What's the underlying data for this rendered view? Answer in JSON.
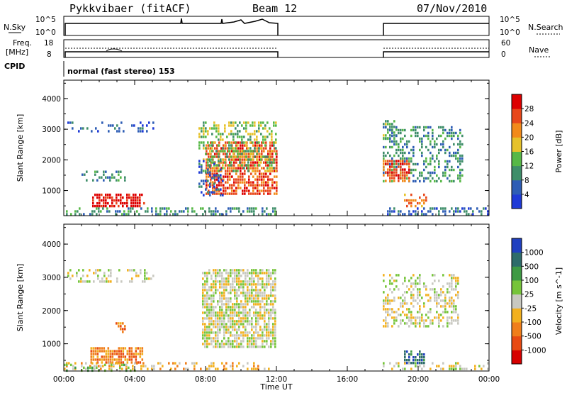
{
  "header": {
    "site": "Pykkvibaer (fitACF)",
    "beam": "Beam 12",
    "date": "07/Nov/2010"
  },
  "top_panels": {
    "nsky_label": "N.Sky",
    "nsearch_label": "N.Search",
    "freq_label_1": "Freq.",
    "freq_label_2": "[MHz]",
    "nave_label": "Nave",
    "cpid_label": "CPID",
    "nsky_ticks": [
      "10^5",
      "10^0"
    ],
    "nsearch_ticks": [
      "10^5",
      "10^0"
    ],
    "freq_ticks": [
      "18",
      "8"
    ],
    "nave_ticks": [
      "60",
      "0"
    ],
    "mode_text": "normal (fast stereo) 153"
  },
  "colors": {
    "power": [
      "#1f3ad6",
      "#2e5db5",
      "#3f8e6a",
      "#57b847",
      "#e6c22a",
      "#f28a1a",
      "#e8471a",
      "#dd0000"
    ],
    "velocity": [
      "#2040c0",
      "#2e6c6a",
      "#3f9a44",
      "#76c43a",
      "#c8c8c0",
      "#f2b01e",
      "#f07e1a",
      "#e84a12",
      "#d60000"
    ]
  },
  "chart_data": [
    {
      "type": "heatmap",
      "title": "",
      "xlabel": "Time UT",
      "ylabel": "Slant Range [km]",
      "x_ticks": [
        "00:00",
        "04:00",
        "08:00",
        "12:00",
        "16:00",
        "20:00",
        "00:00"
      ],
      "y_ticks": [
        "1000",
        "2000",
        "3000",
        "4000"
      ],
      "xlim_hours": [
        0,
        24
      ],
      "ylim_km": [
        180,
        4600
      ],
      "colorbar_label": "Power [dB]",
      "colorbar_ticks": [
        "4",
        "8",
        "12",
        "16",
        "20",
        "24",
        "28"
      ],
      "data_gaps_hours": [
        [
          12,
          18
        ]
      ],
      "regions": [
        {
          "t0": 0.2,
          "t1": 5.2,
          "r0": 2900,
          "r1": 3250,
          "level": 1,
          "density": 0.25
        },
        {
          "t0": 1.0,
          "t1": 3.5,
          "r0": 1350,
          "r1": 1650,
          "level": 2,
          "density": 0.35
        },
        {
          "t0": 1.6,
          "t1": 4.6,
          "r0": 500,
          "r1": 900,
          "level": 7,
          "density": 0.7
        },
        {
          "t0": 0.0,
          "t1": 12.0,
          "r0": 200,
          "r1": 450,
          "level": 2,
          "density": 0.45
        },
        {
          "t0": 8.0,
          "t1": 12.0,
          "r0": 900,
          "r1": 2600,
          "level": 6,
          "density": 0.7
        },
        {
          "t0": 7.6,
          "t1": 12.0,
          "r0": 1600,
          "r1": 3250,
          "level": 3,
          "density": 0.4
        },
        {
          "t0": 7.6,
          "t1": 9.0,
          "r0": 800,
          "r1": 2000,
          "level": 1,
          "density": 0.3
        },
        {
          "t0": 18.0,
          "t1": 18.8,
          "r0": 2700,
          "r1": 3300,
          "level": 3,
          "density": 0.55
        },
        {
          "t0": 18.0,
          "t1": 22.5,
          "r0": 1300,
          "r1": 3100,
          "level": 2,
          "density": 0.4
        },
        {
          "t0": 18.0,
          "t1": 19.5,
          "r0": 1300,
          "r1": 2000,
          "level": 6,
          "density": 0.7
        },
        {
          "t0": 19.2,
          "t1": 20.5,
          "r0": 450,
          "r1": 900,
          "level": 5,
          "density": 0.5
        },
        {
          "t0": 18.0,
          "t1": 24.0,
          "r0": 200,
          "r1": 450,
          "level": 1,
          "density": 0.4
        }
      ]
    },
    {
      "type": "heatmap",
      "title": "",
      "xlabel": "Time UT",
      "ylabel": "Slant Range [km]",
      "x_ticks": [
        "00:00",
        "04:00",
        "08:00",
        "12:00",
        "16:00",
        "20:00",
        "00:00"
      ],
      "y_ticks": [
        "1000",
        "2000",
        "3000",
        "4000"
      ],
      "xlim_hours": [
        0,
        24
      ],
      "ylim_km": [
        180,
        4600
      ],
      "colorbar_label": "Velocity [m s^-1]",
      "colorbar_ticks": [
        "1000",
        "500",
        "100",
        "25",
        "-25",
        "-100",
        "-500",
        "-1000"
      ],
      "data_gaps_hours": [
        [
          12,
          18
        ]
      ],
      "regions": [
        {
          "t0": 0.2,
          "t1": 5.2,
          "r0": 2900,
          "r1": 3250,
          "level": 4,
          "density": 0.3
        },
        {
          "t0": 1.5,
          "t1": 4.5,
          "r0": 400,
          "r1": 900,
          "level": 6,
          "density": 0.75
        },
        {
          "t0": 2.8,
          "t1": 3.5,
          "r0": 1350,
          "r1": 1650,
          "level": 6,
          "density": 0.5
        },
        {
          "t0": 0.0,
          "t1": 12.0,
          "r0": 200,
          "r1": 450,
          "level": 5,
          "density": 0.35
        },
        {
          "t0": 0.0,
          "t1": 4.0,
          "r0": 200,
          "r1": 400,
          "level": 3,
          "density": 0.2
        },
        {
          "t0": 7.8,
          "t1": 12.0,
          "r0": 900,
          "r1": 3250,
          "level": 4,
          "density": 0.75
        },
        {
          "t0": 18.0,
          "t1": 22.3,
          "r0": 1500,
          "r1": 3100,
          "level": 4,
          "density": 0.45
        },
        {
          "t0": 19.2,
          "t1": 20.3,
          "r0": 450,
          "r1": 800,
          "level": 1,
          "density": 0.7
        },
        {
          "t0": 18.0,
          "t1": 24.0,
          "r0": 200,
          "r1": 450,
          "level": 4,
          "density": 0.35
        }
      ]
    }
  ]
}
